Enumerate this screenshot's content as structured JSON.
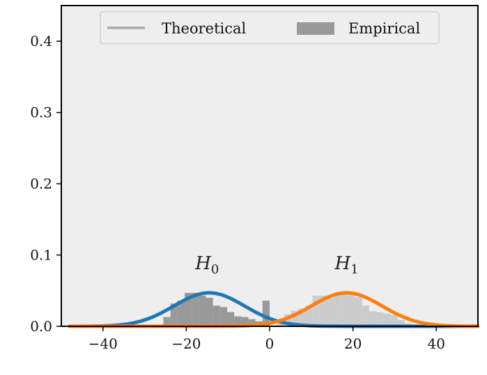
{
  "chart_data": {
    "type": "bar",
    "xlim": [
      -50,
      50
    ],
    "ylim": [
      0,
      0.45
    ],
    "grid": false,
    "background": "#eeeeee",
    "x_ticks": [
      -40,
      -20,
      0,
      20,
      40
    ],
    "x_tick_labels": [
      "−40",
      "−20",
      "0",
      "20",
      "40"
    ],
    "y_ticks": [
      0.0,
      0.1,
      0.2,
      0.3,
      0.4
    ],
    "y_tick_labels": [
      "0.0",
      "0.1",
      "0.2",
      "0.3",
      "0.4"
    ],
    "legend": {
      "placement": "top-center",
      "entries": [
        {
          "label": "Theoretical",
          "kind": "line",
          "color": "#aaaaaa"
        },
        {
          "label": "Empirical",
          "kind": "patch",
          "color": "#999999"
        }
      ]
    },
    "series": [
      {
        "kind": "histogram",
        "color": "#999999",
        "bin_width": 1.7,
        "bins": [
          {
            "x0": -25.5,
            "y": 0.013
          },
          {
            "x0": -23.8,
            "y": 0.032
          },
          {
            "x0": -22.1,
            "y": 0.036
          },
          {
            "x0": -20.4,
            "y": 0.047
          },
          {
            "x0": -18.7,
            "y": 0.047
          },
          {
            "x0": -17.0,
            "y": 0.043
          },
          {
            "x0": -15.3,
            "y": 0.04
          },
          {
            "x0": -13.6,
            "y": 0.029
          },
          {
            "x0": -11.9,
            "y": 0.027
          },
          {
            "x0": -10.2,
            "y": 0.02
          },
          {
            "x0": -8.5,
            "y": 0.014
          },
          {
            "x0": -6.8,
            "y": 0.013
          },
          {
            "x0": -5.1,
            "y": 0.01
          },
          {
            "x0": -3.4,
            "y": 0.007
          },
          {
            "x0": -1.7,
            "y": 0.036
          }
        ]
      },
      {
        "kind": "histogram",
        "color": "#cccccc",
        "bin_width": 1.7,
        "bins": [
          {
            "x0": 1.8,
            "y": 0.009
          },
          {
            "x0": 3.5,
            "y": 0.017
          },
          {
            "x0": 5.2,
            "y": 0.022
          },
          {
            "x0": 6.9,
            "y": 0.025
          },
          {
            "x0": 8.6,
            "y": 0.029
          },
          {
            "x0": 10.3,
            "y": 0.043
          },
          {
            "x0": 12.0,
            "y": 0.043
          },
          {
            "x0": 13.7,
            "y": 0.04
          },
          {
            "x0": 15.4,
            "y": 0.047
          },
          {
            "x0": 17.1,
            "y": 0.047
          },
          {
            "x0": 18.8,
            "y": 0.044
          },
          {
            "x0": 20.5,
            "y": 0.041
          },
          {
            "x0": 22.2,
            "y": 0.029
          },
          {
            "x0": 23.9,
            "y": 0.021
          },
          {
            "x0": 25.6,
            "y": 0.02
          },
          {
            "x0": 27.3,
            "y": 0.018
          },
          {
            "x0": 29.0,
            "y": 0.016
          },
          {
            "x0": 30.7,
            "y": 0.009
          },
          {
            "x0": 32.4,
            "y": 0.004
          }
        ]
      },
      {
        "kind": "line",
        "distribution": "normal",
        "mean": -14.5,
        "std": 8.5,
        "color": "#1f77b4",
        "x_range": [
          -48,
          50
        ]
      },
      {
        "kind": "line",
        "distribution": "normal",
        "mean": 18.5,
        "std": 8.5,
        "color": "#ff7f0e",
        "x_range": [
          -48,
          50
        ]
      }
    ],
    "annotations": [
      {
        "base": "H",
        "sub": "0",
        "x": -15,
        "y": 0.08
      },
      {
        "base": "H",
        "sub": "1",
        "x": 18.5,
        "y": 0.08
      }
    ]
  }
}
